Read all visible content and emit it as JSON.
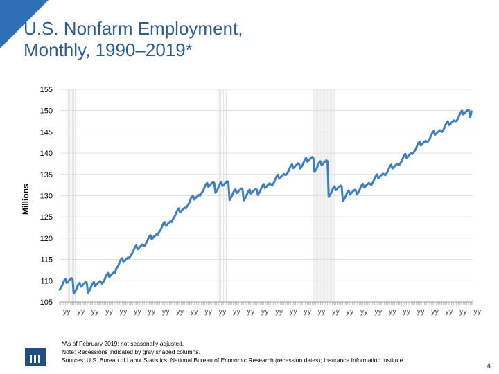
{
  "slide": {
    "title_line1": "U.S. Nonfarm Employment,",
    "title_line2": "Monthly, 1990–2019*",
    "note_line1": "*As of February 2019; not seasonally adjusted.",
    "note_line2": "Note: Recessions indicated by gray shaded columns.",
    "note_line3": "Sources: U.S. Bureau of Labor Statistics; National Bureau of Economic Research (recession dates); Insurance Information Institute.",
    "page_number": "4",
    "logo_icon": "iii-logo-icon",
    "accent_color": "#2f6fb5"
  },
  "chart_data": {
    "type": "line",
    "ylabel": "Millions",
    "ylim": [
      105,
      155
    ],
    "yticks": [
      105,
      110,
      115,
      120,
      125,
      130,
      135,
      140,
      145,
      150,
      155
    ],
    "x_tick_label": "yy",
    "x_tick_count": 30,
    "recessions": [
      {
        "start": "1990-07",
        "end": "1991-03"
      },
      {
        "start": "2001-03",
        "end": "2001-11"
      },
      {
        "start": "2007-12",
        "end": "2009-06"
      }
    ],
    "series_color": "#3d7fc0",
    "recession_color": "#d9d9d9",
    "series": [
      {
        "name": "",
        "annual_average": [
          {
            "year": 1990,
            "value": 109.5
          },
          {
            "year": 1991,
            "value": 108.6
          },
          {
            "year": 1992,
            "value": 108.8
          },
          {
            "year": 1993,
            "value": 110.9
          },
          {
            "year": 1994,
            "value": 114.4
          },
          {
            "year": 1995,
            "value": 117.4
          },
          {
            "year": 1996,
            "value": 119.8
          },
          {
            "year": 1997,
            "value": 122.9
          },
          {
            "year": 1998,
            "value": 126.1
          },
          {
            "year": 1999,
            "value": 129.1
          },
          {
            "year": 2000,
            "value": 132.1
          },
          {
            "year": 2001,
            "value": 132.3
          },
          {
            "year": 2002,
            "value": 130.6
          },
          {
            "year": 2003,
            "value": 130.5
          },
          {
            "year": 2004,
            "value": 131.8
          },
          {
            "year": 2005,
            "value": 134.0
          },
          {
            "year": 2006,
            "value": 136.5
          },
          {
            "year": 2007,
            "value": 138.0
          },
          {
            "year": 2008,
            "value": 137.2
          },
          {
            "year": 2009,
            "value": 131.3
          },
          {
            "year": 2010,
            "value": 130.3
          },
          {
            "year": 2011,
            "value": 131.9
          },
          {
            "year": 2012,
            "value": 134.1
          },
          {
            "year": 2013,
            "value": 136.4
          },
          {
            "year": 2014,
            "value": 138.9
          },
          {
            "year": 2015,
            "value": 141.8
          },
          {
            "year": 2016,
            "value": 144.3
          },
          {
            "year": 2017,
            "value": 146.6
          },
          {
            "year": 2018,
            "value": 149.1
          }
        ],
        "monthly_seasonal_offset": [
          -1.6,
          -1.2,
          -0.7,
          0.0,
          0.6,
          0.9,
          0.0,
          0.2,
          0.6,
          0.8,
          1.1,
          0.9
        ],
        "final_points": [
          {
            "x": "2019-01",
            "value": 148.4
          },
          {
            "x": "2019-02",
            "value": 149.8
          }
        ]
      }
    ]
  }
}
